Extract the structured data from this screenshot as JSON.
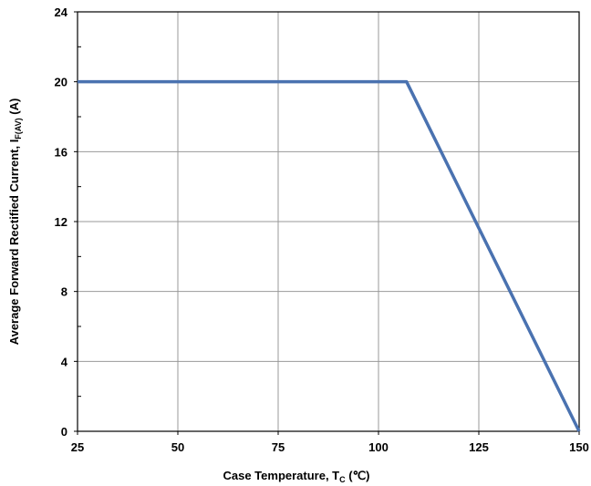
{
  "chart_data": {
    "type": "line",
    "title": "",
    "xlabel": {
      "main": "Case Temperature, T",
      "subscript": "C",
      "unit": " (℃)"
    },
    "ylabel": {
      "main": "Average Forward Rectified Current, I",
      "subscript": "F(AV)",
      "unit": " (A)"
    },
    "xlim": [
      25,
      150
    ],
    "ylim": [
      0,
      24
    ],
    "x_ticks": [
      25,
      50,
      75,
      100,
      125,
      150
    ],
    "y_ticks": [
      0,
      4,
      8,
      12,
      16,
      20,
      24
    ],
    "grid": true,
    "legend": "none",
    "series": [
      {
        "color": "#4a72b0",
        "x": [
          25,
          107,
          150
        ],
        "y": [
          20,
          20,
          0
        ]
      }
    ]
  }
}
